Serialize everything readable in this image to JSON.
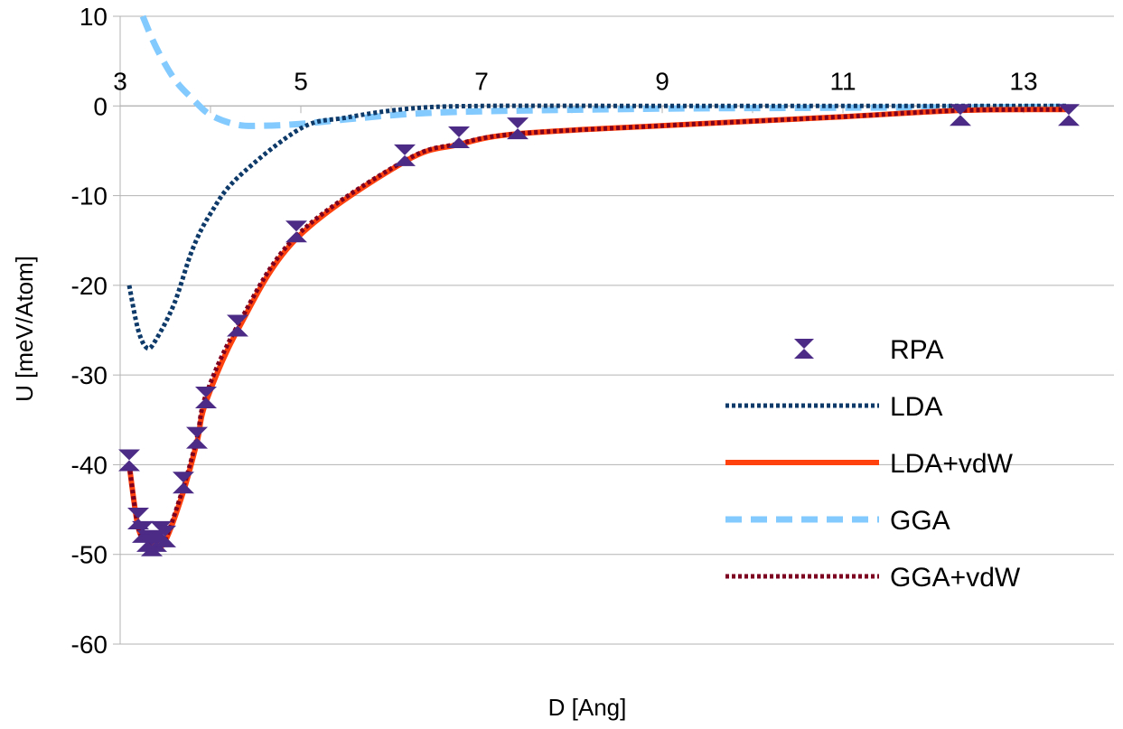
{
  "chart_data": {
    "type": "line",
    "title": "",
    "xlabel": "D [Ang]",
    "ylabel": "U [meV/Atom]",
    "xlim": [
      3,
      13.5
    ],
    "ylim": [
      -60,
      10
    ],
    "x_ticks": [
      3,
      5,
      7,
      9,
      11,
      13
    ],
    "y_ticks": [
      10,
      0,
      -10,
      -20,
      -30,
      -40,
      -50,
      -60
    ],
    "x_axis_crosses_at_y": 0,
    "grid": "horizontal",
    "legend_position": "right",
    "series": [
      {
        "name": "RPA",
        "style": "markers",
        "color": "#4b2b86",
        "points": [
          [
            3.1,
            -39.5
          ],
          [
            3.2,
            -46
          ],
          [
            3.25,
            -47.5
          ],
          [
            3.3,
            -48.5
          ],
          [
            3.35,
            -49
          ],
          [
            3.4,
            -48.5
          ],
          [
            3.45,
            -47.5
          ],
          [
            3.5,
            -48
          ],
          [
            3.7,
            -42
          ],
          [
            3.85,
            -37
          ],
          [
            3.95,
            -32.5
          ],
          [
            4.3,
            -24.5
          ],
          [
            4.95,
            -14
          ],
          [
            6.15,
            -5.5
          ],
          [
            6.75,
            -3.5
          ],
          [
            7.4,
            -2.5
          ],
          [
            12.3,
            -1
          ],
          [
            13.5,
            -1
          ]
        ]
      },
      {
        "name": "LDA",
        "style": "dotted",
        "color": "#0e3a6a",
        "points": [
          [
            3.1,
            -20
          ],
          [
            3.2,
            -25
          ],
          [
            3.3,
            -27
          ],
          [
            3.4,
            -26
          ],
          [
            3.6,
            -22
          ],
          [
            3.8,
            -16
          ],
          [
            4.0,
            -12
          ],
          [
            4.3,
            -8
          ],
          [
            5.0,
            -2.5
          ],
          [
            5.5,
            -1.3
          ],
          [
            6.2,
            -0.3
          ],
          [
            7,
            0
          ],
          [
            9,
            0
          ],
          [
            11,
            0
          ],
          [
            13.5,
            0
          ]
        ]
      },
      {
        "name": "LDA+vdW",
        "style": "solid",
        "color": "#ff420e",
        "points": [
          [
            3.1,
            -40
          ],
          [
            3.2,
            -47
          ],
          [
            3.3,
            -48.5
          ],
          [
            3.4,
            -49
          ],
          [
            3.5,
            -48.5
          ],
          [
            3.7,
            -43
          ],
          [
            3.85,
            -37.5
          ],
          [
            3.95,
            -33
          ],
          [
            4.3,
            -25
          ],
          [
            4.95,
            -14.8
          ],
          [
            6.15,
            -6.2
          ],
          [
            6.75,
            -4.3
          ],
          [
            7.4,
            -3.1
          ],
          [
            9,
            -2.2
          ],
          [
            11,
            -1.2
          ],
          [
            12.3,
            -0.5
          ],
          [
            13.5,
            -0.4
          ]
        ]
      },
      {
        "name": "GGA",
        "style": "dashed",
        "color": "#83caff",
        "points": [
          [
            3.25,
            10
          ],
          [
            3.4,
            6.5
          ],
          [
            3.6,
            3
          ],
          [
            3.8,
            0.8
          ],
          [
            4.0,
            -1
          ],
          [
            4.3,
            -2.1
          ],
          [
            4.6,
            -2.2
          ],
          [
            5.0,
            -2
          ],
          [
            5.5,
            -1.5
          ],
          [
            6.2,
            -0.9
          ],
          [
            7,
            -0.6
          ],
          [
            9,
            -0.3
          ],
          [
            11,
            -0.2
          ],
          [
            13.5,
            -0.1
          ]
        ]
      },
      {
        "name": "GGA+vdW",
        "style": "dotted",
        "color": "#7e0021",
        "points": [
          [
            3.1,
            -40
          ],
          [
            3.2,
            -47
          ],
          [
            3.3,
            -48.5
          ],
          [
            3.4,
            -48.8
          ],
          [
            3.5,
            -48.3
          ],
          [
            3.7,
            -42.5
          ],
          [
            3.85,
            -37
          ],
          [
            3.95,
            -32.2
          ],
          [
            4.3,
            -24.5
          ],
          [
            4.95,
            -14.5
          ],
          [
            6.15,
            -6.1
          ],
          [
            6.75,
            -4.2
          ],
          [
            7.4,
            -3.1
          ],
          [
            9,
            -2.2
          ],
          [
            11,
            -1.2
          ],
          [
            12.3,
            -0.5
          ],
          [
            13.5,
            -0.4
          ]
        ]
      }
    ]
  }
}
